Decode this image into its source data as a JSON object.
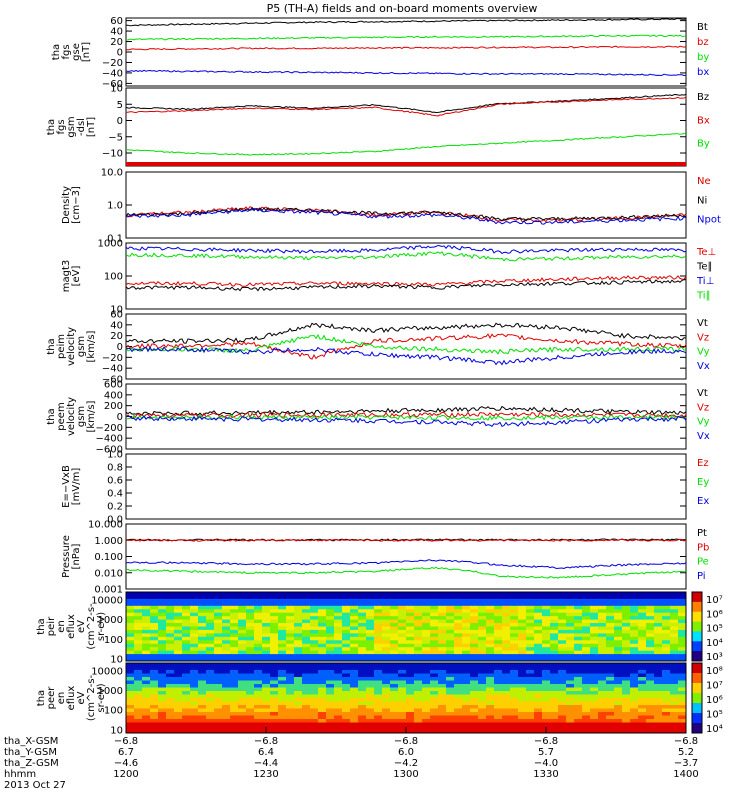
{
  "title": "P5 (TH-A) fields and on-board moments overview",
  "colors": {
    "black": "#000000",
    "red": "#e00000",
    "green": "#00e000",
    "blue": "#0000e0"
  },
  "chart_data": [
    {
      "type": "line",
      "ylabel": [
        "tha",
        "fgs",
        "gse",
        "[nT]"
      ],
      "yticks": [
        "60",
        "40",
        "20",
        "0",
        "−20",
        "−40",
        "−60"
      ],
      "ylim": [
        -65,
        65
      ],
      "series": [
        {
          "name": "Bt",
          "color": "black",
          "values": [
            51,
            53,
            55,
            57,
            58,
            59,
            60,
            61,
            62,
            63
          ]
        },
        {
          "name": "bz",
          "color": "red",
          "values": [
            5,
            6,
            7,
            7,
            8,
            8,
            9,
            9,
            10,
            10
          ]
        },
        {
          "name": "by",
          "color": "green",
          "values": [
            24,
            25,
            26,
            27,
            28,
            29,
            29,
            30,
            31,
            31
          ]
        },
        {
          "name": "bx",
          "color": "blue",
          "values": [
            -36,
            -37,
            -38,
            -39,
            -40,
            -41,
            -42,
            -42,
            -43,
            -44
          ]
        }
      ]
    },
    {
      "type": "line",
      "ylabel": [
        "tha",
        "fgs",
        "gsm",
        "-dsl",
        "[nT]"
      ],
      "yticks": [
        "10",
        "5",
        "0",
        "−5",
        "−10"
      ],
      "ylim": [
        -14,
        10
      ],
      "series": [
        {
          "name": "Bz",
          "color": "black",
          "values": [
            4,
            3.5,
            4.5,
            3.8,
            4.8,
            2.5,
            5.2,
            6,
            7,
            8
          ]
        },
        {
          "name": "Bx",
          "color": "red",
          "values": [
            2.5,
            3,
            3.8,
            3.4,
            4,
            1.5,
            5,
            5.8,
            6.5,
            7
          ]
        },
        {
          "name": "By",
          "color": "green",
          "values": [
            -9,
            -10,
            -10.5,
            -10.2,
            -9.5,
            -8,
            -7,
            -6,
            -5,
            -4
          ]
        }
      ]
    },
    {
      "type": "line",
      "log": true,
      "ylabel": [
        "Density",
        "[cm−3]"
      ],
      "yticks": [
        "10.0",
        "1.0",
        "0.1"
      ],
      "ylim": [
        0.1,
        10
      ],
      "series": [
        {
          "name": "Ne",
          "color": "red",
          "values": [
            0.5,
            0.6,
            0.8,
            0.7,
            0.5,
            0.6,
            0.35,
            0.35,
            0.4,
            0.5
          ]
        },
        {
          "name": "Ni",
          "color": "black",
          "values": [
            0.5,
            0.55,
            0.75,
            0.7,
            0.55,
            0.6,
            0.38,
            0.38,
            0.42,
            0.5
          ]
        },
        {
          "name": "Npot",
          "color": "blue",
          "values": [
            0.45,
            0.5,
            0.7,
            0.6,
            0.45,
            0.5,
            0.3,
            0.3,
            0.35,
            0.4
          ]
        }
      ]
    },
    {
      "type": "line",
      "log": true,
      "ylabel": [
        "magt3",
        "[eV]"
      ],
      "yticks": [
        "1000",
        "100",
        "10"
      ],
      "ylim": [
        10,
        1000
      ],
      "series": [
        {
          "name": "Te⊥",
          "color": "red",
          "values": [
            60,
            60,
            55,
            60,
            60,
            55,
            70,
            80,
            90,
            90
          ]
        },
        {
          "name": "Te∥",
          "color": "black",
          "values": [
            45,
            45,
            40,
            45,
            50,
            45,
            55,
            60,
            65,
            70
          ]
        },
        {
          "name": "Ti⊥",
          "color": "blue",
          "values": [
            700,
            650,
            600,
            550,
            600,
            800,
            550,
            600,
            650,
            600
          ]
        },
        {
          "name": "Ti∥",
          "color": "green",
          "values": [
            450,
            420,
            380,
            350,
            380,
            500,
            320,
            340,
            380,
            400
          ]
        }
      ]
    },
    {
      "type": "line",
      "ylabel": [
        "tha",
        "peim",
        "velocity",
        "gsm",
        "[km/s]"
      ],
      "yticks": [
        "60",
        "40",
        "20",
        "0",
        "−20",
        "−40",
        "−60"
      ],
      "ylim": [
        -60,
        60
      ],
      "series": [
        {
          "name": "Vt",
          "color": "black",
          "values": [
            10,
            10,
            12,
            40,
            30,
            35,
            40,
            35,
            20,
            15
          ]
        },
        {
          "name": "Vz",
          "color": "red",
          "values": [
            0,
            2,
            5,
            -20,
            10,
            15,
            20,
            10,
            5,
            0
          ]
        },
        {
          "name": "Vy",
          "color": "green",
          "values": [
            -5,
            -5,
            -8,
            20,
            0,
            -5,
            -10,
            -5,
            -5,
            -5
          ]
        },
        {
          "name": "Vx",
          "color": "blue",
          "values": [
            -5,
            -5,
            -10,
            -5,
            -15,
            -20,
            -30,
            -20,
            -10,
            -8
          ]
        }
      ]
    },
    {
      "type": "line",
      "ylabel": [
        "tha",
        "peem",
        "velocity",
        "gsm",
        "[km/s]"
      ],
      "yticks": [
        "600",
        "400",
        "200",
        "0",
        "−200",
        "−400",
        "−600"
      ],
      "ylim": [
        -600,
        600
      ],
      "series": [
        {
          "name": "Vt",
          "color": "black",
          "values": [
            50,
            60,
            70,
            80,
            100,
            120,
            150,
            120,
            80,
            60
          ]
        },
        {
          "name": "Vz",
          "color": "red",
          "values": [
            20,
            20,
            25,
            30,
            30,
            35,
            40,
            30,
            25,
            20
          ]
        },
        {
          "name": "Vy",
          "color": "green",
          "values": [
            -10,
            -10,
            -15,
            -20,
            -15,
            -20,
            -25,
            -20,
            -15,
            -10
          ]
        },
        {
          "name": "Vx",
          "color": "blue",
          "values": [
            -30,
            -40,
            -50,
            -60,
            -80,
            -100,
            -150,
            -100,
            -60,
            -40
          ]
        }
      ]
    },
    {
      "type": "line",
      "ylabel": [
        "E=−VxB",
        "[mV/m]"
      ],
      "yticks": [
        "1.0",
        "0.8",
        "0.6",
        "0.4",
        "0.2",
        "0.0"
      ],
      "ylim": [
        0,
        1
      ],
      "series": [
        {
          "name": "Ez",
          "color": "red",
          "values": []
        },
        {
          "name": "Ey",
          "color": "green",
          "values": []
        },
        {
          "name": "Ex",
          "color": "blue",
          "values": []
        }
      ]
    },
    {
      "type": "line",
      "log": true,
      "ylabel": [
        "Pressure",
        "[nPa]"
      ],
      "yticks": [
        "10.000",
        "1.000",
        "0.100",
        "0.010",
        "0.001"
      ],
      "ylim": [
        0.001,
        10
      ],
      "series": [
        {
          "name": "Pt",
          "color": "black",
          "values": [
            1.05,
            1.05,
            1.05,
            1.05,
            1.06,
            1.06,
            1.06,
            1.06,
            1.07,
            1.07
          ]
        },
        {
          "name": "Pb",
          "color": "red",
          "values": [
            1.0,
            1.0,
            1.0,
            1.0,
            1.0,
            1.0,
            1.0,
            1.0,
            1.0,
            1.0
          ]
        },
        {
          "name": "Pe",
          "color": "green",
          "values": [
            0.015,
            0.012,
            0.01,
            0.01,
            0.012,
            0.02,
            0.006,
            0.005,
            0.008,
            0.012
          ]
        },
        {
          "name": "Pi",
          "color": "blue",
          "values": [
            0.045,
            0.04,
            0.035,
            0.035,
            0.04,
            0.06,
            0.03,
            0.02,
            0.03,
            0.04
          ]
        }
      ]
    },
    {
      "type": "heatmap",
      "ylabel": [
        "tha",
        "peir",
        "en",
        "eflux",
        "eV",
        "(cm^2-s-",
        "sr-eV)"
      ],
      "yticks": [
        "10000",
        "1000",
        "100",
        "10"
      ],
      "ylim": [
        8,
        25000
      ],
      "colorbar": [
        "10⁷",
        "10⁶",
        "10⁵",
        "10⁴",
        "10³"
      ]
    },
    {
      "type": "heatmap",
      "ylabel": [
        "tha",
        "peer",
        "en",
        "eflux",
        "eV",
        "(cm^2-s-",
        "sr-eV)"
      ],
      "yticks": [
        "10000",
        "1000",
        "100",
        "10"
      ],
      "ylim": [
        7,
        25000
      ],
      "colorbar": [
        "10⁸",
        "10⁷",
        "10⁶",
        "10⁵",
        "10⁴"
      ]
    }
  ],
  "xaxis": {
    "row_labels": [
      "tha_X-GSM",
      "tha_Y-GSM",
      "tha_Z-GSM",
      "hhmm",
      "2013 Oct 27"
    ],
    "columns": [
      [
        "−6.8",
        "6.7",
        "−4.6",
        "1200"
      ],
      [
        "−6.8",
        "6.4",
        "−4.4",
        "1230"
      ],
      [
        "−6.8",
        "6.0",
        "−4.2",
        "1300"
      ],
      [
        "−6.8",
        "5.7",
        "−4.0",
        "1330"
      ],
      [
        "−6.8",
        "5.2",
        "−3.7",
        "1400"
      ]
    ]
  }
}
